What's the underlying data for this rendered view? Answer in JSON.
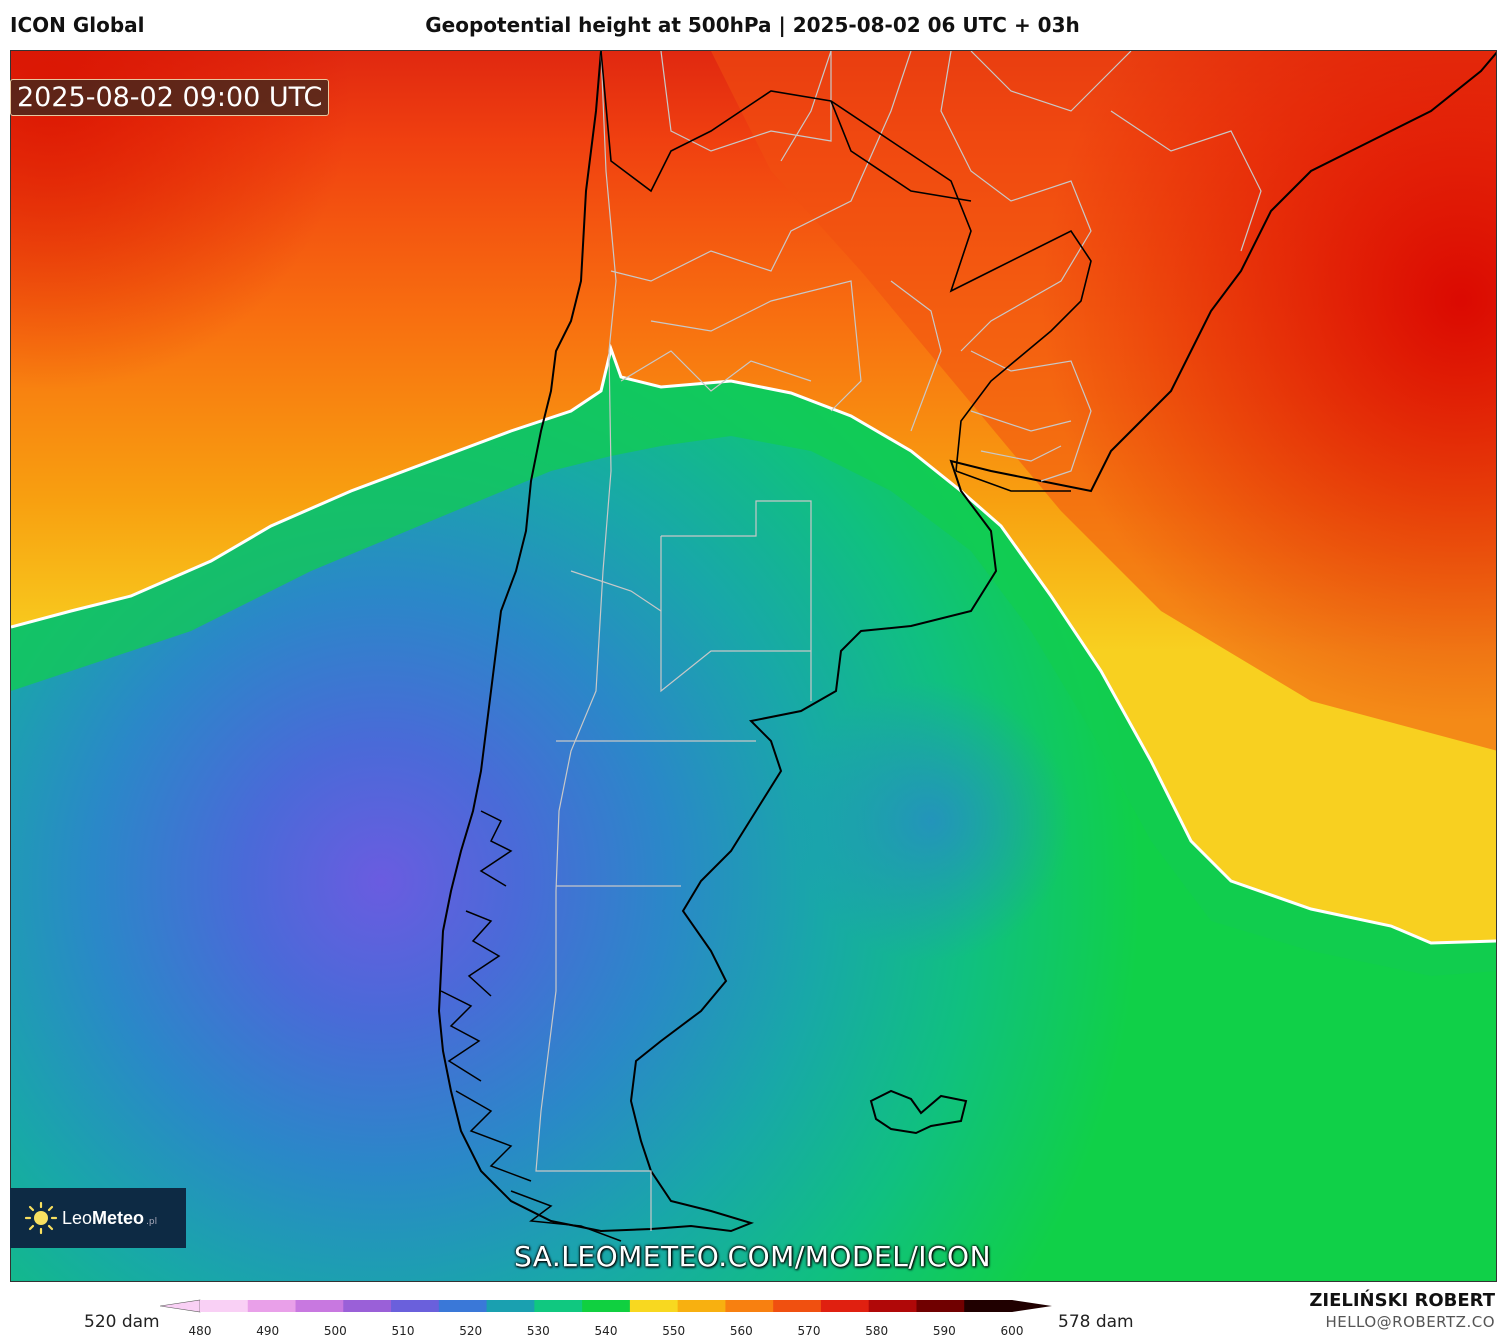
{
  "header": {
    "model": "ICON Global",
    "title": "Geopotential height at 500hPa | 2025-08-02 06 UTC + 03h"
  },
  "map": {
    "valid_time": "2025-08-02 09:00 UTC",
    "url": "SA.LEOMETEO.COM/MODEL/ICON",
    "logo": {
      "name": "LeoMeteo",
      "prefix": "Leo",
      "suffix": "Meteo",
      "sub": ".pl"
    },
    "region": "South America (southern cone)"
  },
  "colorbar": {
    "left_label": "520 dam",
    "right_label": "578 dam",
    "ticks": [
      "480",
      "490",
      "500",
      "510",
      "520",
      "530",
      "540",
      "550",
      "560",
      "570",
      "580",
      "590",
      "600"
    ],
    "colors": [
      "#f9d0f5",
      "#e9a0e9",
      "#c878e0",
      "#9a60d8",
      "#6a60dc",
      "#3a78d8",
      "#1aa0b0",
      "#10c880",
      "#10d040",
      "#f8d820",
      "#f8b010",
      "#f88010",
      "#f05010",
      "#e02010",
      "#b00808",
      "#700000",
      "#200000"
    ]
  },
  "credit": {
    "author": "ZIELIŃSKI ROBERT",
    "email": "HELLO@ROBERTZ.CO"
  }
}
